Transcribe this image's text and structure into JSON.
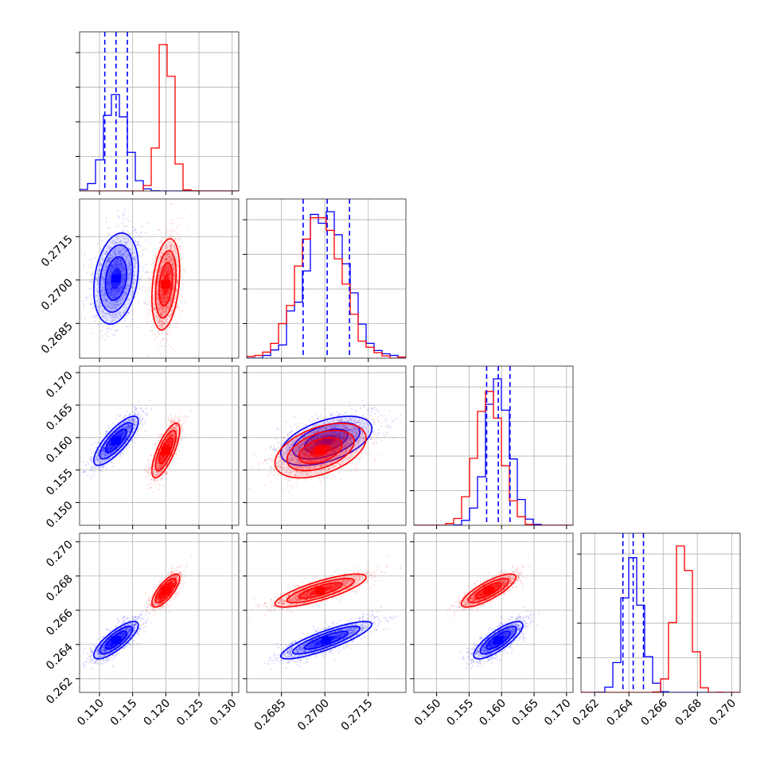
{
  "colors": {
    "blue": "#0000ff",
    "red": "#ff0000",
    "grid": "#b0b0b0"
  },
  "chart_data": {
    "type": "scatter",
    "subtype": "corner-plot",
    "grid": true,
    "legend": "none",
    "parameters": [
      {
        "range": [
          0.107,
          0.131
        ],
        "ticks": [
          0.11,
          0.115,
          0.12,
          0.125,
          0.13
        ],
        "tick_labels": [
          "0.110",
          "0.115",
          "0.120",
          "0.125",
          "0.130"
        ]
      },
      {
        "range": [
          0.2673,
          0.2728
        ],
        "ticks": [
          0.2685,
          0.27,
          0.2715
        ],
        "tick_labels": [
          "0.2685",
          "0.2700",
          "0.2715"
        ]
      },
      {
        "range": [
          0.1465,
          0.171
        ],
        "ticks": [
          0.15,
          0.155,
          0.16,
          0.165,
          0.17
        ],
        "tick_labels": [
          "0.150",
          "0.155",
          "0.160",
          "0.165",
          "0.170"
        ]
      },
      {
        "range": [
          0.2612,
          0.2705
        ],
        "ticks": [
          0.262,
          0.264,
          0.266,
          0.268,
          0.27
        ],
        "tick_labels": [
          "0.262",
          "0.264",
          "0.266",
          "0.268",
          "0.270"
        ]
      }
    ],
    "series": [
      {
        "color": "#0000ff",
        "mean": [
          0.1125,
          0.27005,
          0.1595,
          0.26425
        ],
        "std": [
          0.0016,
          0.00075,
          0.0018,
          0.00052
        ],
        "corr": [
          [
            1,
            0.25,
            0.8,
            0.8
          ],
          [
            0.25,
            1,
            0.5,
            0.85
          ],
          [
            0.8,
            0.5,
            1,
            0.8
          ],
          [
            0.8,
            0.85,
            0.8,
            1
          ]
        ],
        "quantiles": [
          [
            0.1108,
            0.1125,
            0.1142
          ],
          [
            0.26925,
            0.27008,
            0.27085
          ],
          [
            0.1577,
            0.1595,
            0.1613
          ],
          [
            0.26365,
            0.26425,
            0.26485
          ]
        ]
      },
      {
        "color": "#ff0000",
        "mean": [
          0.12,
          0.26985,
          0.158,
          0.26715
        ],
        "std": [
          0.001,
          0.00075,
          0.002,
          0.00046
        ],
        "corr": [
          [
            1,
            0.3,
            0.75,
            0.75
          ],
          [
            0.3,
            1,
            0.45,
            0.8
          ],
          [
            0.75,
            0.45,
            1,
            0.8
          ],
          [
            0.75,
            0.8,
            0.8,
            1
          ]
        ],
        "quantiles": []
      }
    ]
  }
}
